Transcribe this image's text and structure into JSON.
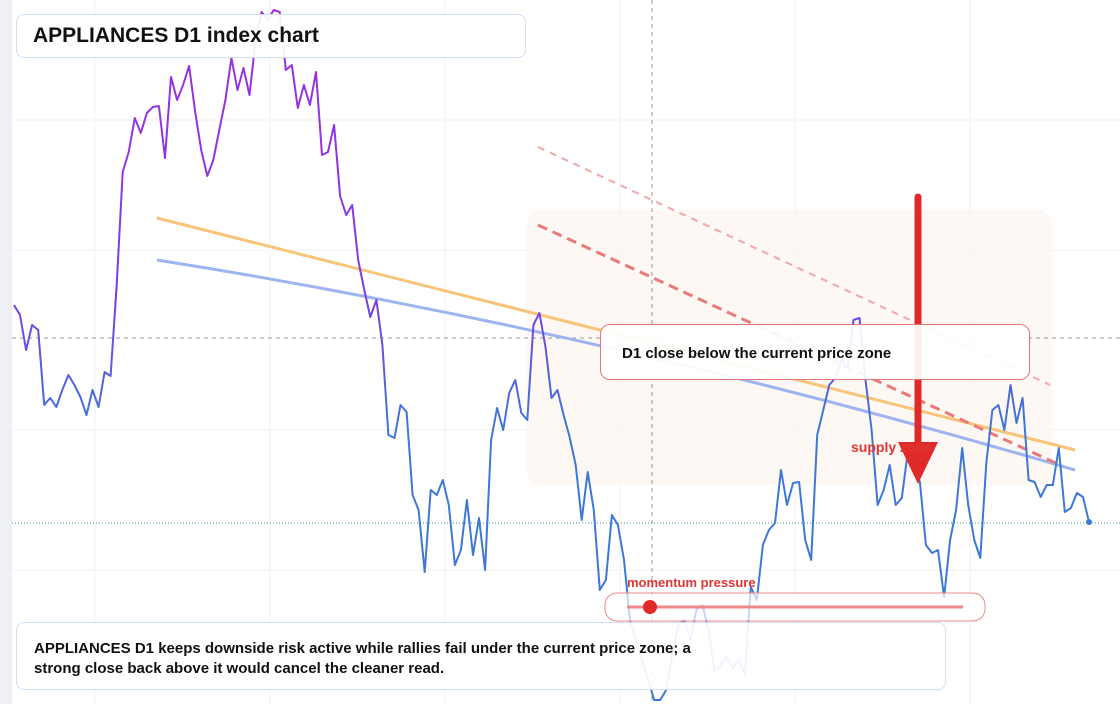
{
  "chart_data": {
    "type": "line",
    "title": "APPLIANCES D1 index chart",
    "callout": "D1 close below the current price zone",
    "zone_label": "supply zone",
    "momentum_label": "momentum pressure",
    "note": "APPLIANCES D1 keeps downside risk active while rallies fail under the current price zone; a strong close back above it would cancel the cleaner read.",
    "ylim": [
      0,
      704
    ],
    "series": [
      {
        "color": "#3d78d8",
        "values": [
          399,
          389,
          354,
          379,
          374,
          299,
          306,
          297,
          314,
          329,
          319,
          307,
          289,
          314,
          297,
          332,
          328,
          419,
          532,
          552,
          586,
          571,
          591,
          597,
          598,
          546,
          627,
          604,
          619,
          638,
          592,
          554,
          528,
          544,
          574,
          604,
          646,
          614,
          636,
          609,
          664,
          692,
          684,
          694,
          692,
          634,
          639,
          596,
          619,
          599,
          632,
          549,
          552,
          579,
          508,
          489,
          499,
          444,
          414,
          387,
          404,
          359,
          269,
          266,
          299,
          292,
          209,
          194,
          132,
          214,
          209,
          224,
          199,
          139,
          154,
          204,
          149,
          186,
          134,
          264,
          296,
          274,
          311,
          324,
          291,
          284,
          379,
          391,
          357,
          306,
          314,
          289,
          267,
          239,
          184,
          232,
          194,
          114,
          124,
          189,
          179,
          144,
          84,
          64,
          44,
          24,
          4,
          4,
          14,
          49,
          79,
          84,
          64,
          94,
          99,
          74,
          32,
          39,
          47,
          36,
          44,
          30,
          117,
          104,
          159,
          174,
          181,
          234,
          199,
          221,
          222,
          164,
          144,
          269,
          294,
          319,
          326,
          344,
          336,
          384,
          386,
          324,
          274,
          199,
          214,
          239,
          199,
          206,
          252,
          239,
          222,
          159,
          151,
          154,
          107,
          164,
          194,
          256,
          199,
          164,
          146,
          241,
          294,
          299,
          274,
          319,
          281,
          306,
          224,
          222,
          207,
          219,
          219,
          256,
          192,
          196,
          211,
          207,
          182
        ]
      }
    ]
  }
}
